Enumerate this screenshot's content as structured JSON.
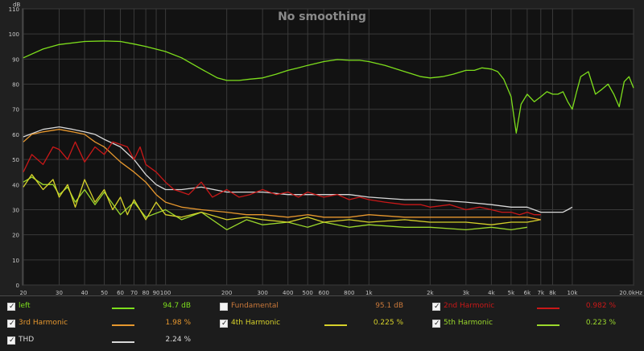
{
  "chart_data": {
    "type": "line",
    "title": "No smoothing",
    "ylabel": "dB",
    "xunit": "Hz",
    "xscale": "log",
    "xlim": [
      20,
      20000
    ],
    "ylim": [
      0,
      110
    ],
    "yticks": [
      0,
      10,
      20,
      30,
      40,
      50,
      60,
      70,
      80,
      90,
      100,
      110
    ],
    "xticks": [
      {
        "v": 20,
        "l": "20"
      },
      {
        "v": 30,
        "l": "30"
      },
      {
        "v": 40,
        "l": "40"
      },
      {
        "v": 50,
        "l": "50"
      },
      {
        "v": 60,
        "l": "60"
      },
      {
        "v": 70,
        "l": "70"
      },
      {
        "v": 80,
        "l": "80"
      },
      {
        "v": 90,
        "l": "90"
      },
      {
        "v": 100,
        "l": "100"
      },
      {
        "v": 200,
        "l": "200"
      },
      {
        "v": 300,
        "l": "300"
      },
      {
        "v": 400,
        "l": "400"
      },
      {
        "v": 500,
        "l": "500"
      },
      {
        "v": 600,
        "l": "600"
      },
      {
        "v": 800,
        "l": "800"
      },
      {
        "v": 1000,
        "l": "1k"
      },
      {
        "v": 2000,
        "l": "2k"
      },
      {
        "v": 3000,
        "l": "3k"
      },
      {
        "v": 4000,
        "l": "4k"
      },
      {
        "v": 5000,
        "l": "5k"
      },
      {
        "v": 6000,
        "l": "6k"
      },
      {
        "v": 7000,
        "l": "7k"
      },
      {
        "v": 8000,
        "l": "8k"
      },
      {
        "v": 10000,
        "l": "10k"
      },
      {
        "v": 20000,
        "l": "20.0k"
      }
    ],
    "grid": true,
    "series": [
      {
        "name": "left",
        "color": "#7dde1c",
        "x": [
          20,
          25,
          30,
          40,
          50,
          60,
          70,
          80,
          100,
          120,
          150,
          180,
          200,
          230,
          260,
          300,
          350,
          400,
          450,
          500,
          600,
          700,
          800,
          900,
          1000,
          1200,
          1500,
          1800,
          2000,
          2300,
          2600,
          3000,
          3300,
          3600,
          4000,
          4300,
          4600,
          5000,
          5300,
          5600,
          6000,
          6500,
          7000,
          7500,
          8000,
          8500,
          9000,
          9500,
          10000,
          10500,
          11000,
          12000,
          13000,
          14000,
          15000,
          16000,
          17000,
          18000,
          19000,
          20000
        ],
        "y": [
          90.5,
          94,
          95.8,
          97,
          97.2,
          97,
          96,
          95,
          93,
          90.5,
          86,
          82.5,
          81.5,
          81.5,
          82,
          82.5,
          84,
          85.5,
          86.5,
          87.5,
          89,
          89.8,
          89.5,
          89.5,
          89,
          87.5,
          85,
          83,
          82.5,
          83,
          84,
          85.5,
          85.5,
          86.5,
          86,
          85,
          82,
          75,
          60.5,
          72,
          76,
          73,
          75,
          77,
          76,
          76,
          77,
          73,
          70,
          77,
          83,
          85,
          76,
          78,
          80,
          76,
          71,
          81,
          83,
          78.5
        ]
      },
      {
        "name": "2nd Harmonic",
        "color": "#c91818",
        "x": [
          20,
          22,
          25,
          28,
          30,
          33,
          36,
          40,
          45,
          50,
          55,
          60,
          65,
          70,
          75,
          80,
          90,
          100,
          110,
          120,
          130,
          150,
          170,
          200,
          230,
          260,
          300,
          350,
          400,
          450,
          500,
          600,
          700,
          800,
          900,
          1000,
          1200,
          1500,
          1800,
          2000,
          2500,
          3000,
          3500,
          4000,
          4500,
          5000,
          5500,
          6000,
          6500,
          7000
        ],
        "y": [
          45,
          52,
          48,
          55,
          54,
          50,
          57,
          49,
          55,
          52,
          57,
          56,
          55,
          50,
          55,
          48,
          45,
          41,
          38,
          37,
          36,
          41,
          35,
          38,
          35,
          36,
          38,
          36,
          37,
          35,
          37,
          35,
          36,
          34,
          35,
          34,
          33,
          32,
          32,
          31,
          32,
          30,
          31,
          30,
          29,
          29,
          28,
          29,
          28,
          28
        ]
      },
      {
        "name": "3rd Harmonic",
        "color": "#e6972e",
        "x": [
          20,
          22,
          25,
          30,
          35,
          40,
          45,
          50,
          60,
          70,
          80,
          90,
          100,
          120,
          150,
          200,
          250,
          300,
          400,
          500,
          600,
          800,
          1000,
          1500,
          2000,
          3000,
          4000,
          5000,
          6000,
          7000
        ],
        "y": [
          57,
          60,
          61,
          62,
          61,
          60,
          57,
          55,
          49,
          45,
          41,
          36,
          33,
          31,
          30,
          29,
          28,
          28,
          27,
          28,
          27,
          27,
          28,
          27,
          27,
          27,
          27,
          27,
          27,
          26
        ]
      },
      {
        "name": "4th Harmonic",
        "color": "#d6d12a",
        "x": [
          20,
          22,
          25,
          28,
          30,
          33,
          36,
          40,
          45,
          50,
          55,
          60,
          65,
          70,
          80,
          90,
          100,
          120,
          150,
          200,
          250,
          300,
          400,
          500,
          600,
          800,
          1000,
          1500,
          2000,
          3000,
          4000,
          5000,
          6000,
          7000
        ],
        "y": [
          39,
          44,
          38,
          42,
          35,
          40,
          31,
          42,
          33,
          38,
          30,
          35,
          28,
          34,
          26,
          33,
          28,
          27,
          29,
          26,
          27,
          26,
          25,
          27,
          25,
          26,
          25,
          26,
          25,
          25,
          24,
          25,
          25,
          26
        ]
      },
      {
        "name": "5th Harmonic",
        "color": "#9ad82c",
        "x": [
          20,
          22,
          25,
          28,
          30,
          33,
          36,
          40,
          45,
          50,
          60,
          70,
          80,
          100,
          120,
          150,
          200,
          250,
          300,
          400,
          500,
          600,
          800,
          1000,
          1500,
          2000,
          3000,
          4000,
          5000,
          6000
        ],
        "y": [
          41,
          43,
          40,
          40,
          36,
          39,
          33,
          38,
          32,
          37,
          28,
          33,
          27,
          30,
          26,
          29,
          22,
          26,
          24,
          25,
          23,
          25,
          23,
          24,
          23,
          23,
          22,
          23,
          22,
          23
        ]
      },
      {
        "name": "THD",
        "color": "#d8d8d8",
        "x": [
          20,
          25,
          30,
          35,
          40,
          45,
          50,
          60,
          70,
          80,
          90,
          100,
          120,
          150,
          200,
          250,
          300,
          400,
          500,
          600,
          800,
          1000,
          1500,
          2000,
          3000,
          4000,
          5000,
          6000,
          7000,
          8000,
          9000,
          9500,
          10000
        ],
        "y": [
          59,
          62,
          63,
          62,
          61,
          60,
          58,
          55,
          50,
          44,
          40,
          38,
          38,
          39,
          37,
          37,
          37,
          36,
          36,
          36,
          36,
          35,
          34,
          34,
          33,
          32,
          31,
          31,
          29,
          29,
          29,
          30,
          31
        ]
      }
    ]
  },
  "legend": [
    {
      "name": "left",
      "checked": true,
      "value": "94.7 dB",
      "color": "#7dde1c",
      "label_color": "#7dde1c",
      "value_color": "#7dde1c"
    },
    {
      "name": "Fundamental",
      "checked": false,
      "value": "95.1 dB",
      "color": "#e0803a",
      "label_color": "#c9783a",
      "value_color": "#c9783a"
    },
    {
      "name": "2nd Harmonic",
      "checked": true,
      "value": "0.982 %",
      "color": "#c91818",
      "label_color": "#c91818",
      "value_color": "#c91818"
    },
    {
      "name": "3rd Harmonic",
      "checked": true,
      "value": "1.98 %",
      "color": "#e6972e",
      "label_color": "#e6972e",
      "value_color": "#e6972e"
    },
    {
      "name": "4th Harmonic",
      "checked": true,
      "value": "0.225 %",
      "color": "#d6d12a",
      "label_color": "#d6d12a",
      "value_color": "#d6d12a"
    },
    {
      "name": "5th Harmonic",
      "checked": true,
      "value": "0.223 %",
      "color": "#9ad82c",
      "label_color": "#9ad82c",
      "value_color": "#9ad82c"
    },
    {
      "name": "THD",
      "checked": true,
      "value": "2.24 %",
      "color": "#d8d8d8",
      "label_color": "#d8d8d8",
      "value_color": "#d8d8d8"
    }
  ]
}
